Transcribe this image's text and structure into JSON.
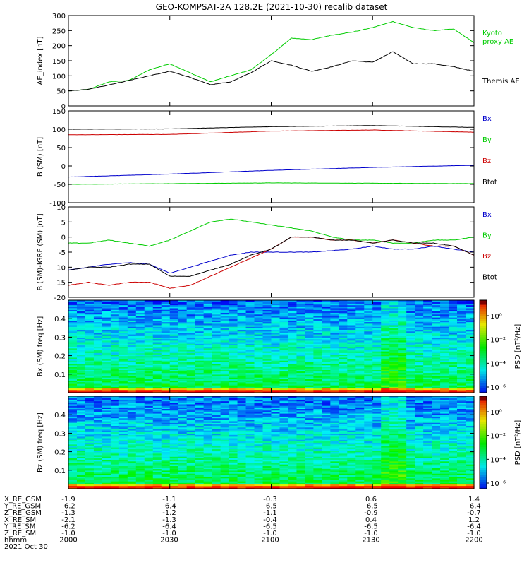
{
  "title": "GEO-KOMPSAT-2A 128.2E (2021-10-30) recalib dataset",
  "colors": {
    "black": "#000000",
    "blue": "#0000cc",
    "red": "#cc0000",
    "green": "#00cc00"
  },
  "x_ticks": [
    "2000",
    "2030",
    "2100",
    "2130",
    "2200"
  ],
  "chart_data": [
    {
      "type": "line",
      "id": "ae",
      "ylabel": "AE_index [nT]",
      "ylim": [
        0,
        300
      ],
      "yticks": [
        0,
        50,
        100,
        150,
        200,
        250,
        300
      ],
      "xlim": [
        0,
        120
      ],
      "series": [
        {
          "name": "Kyoto proxy AE",
          "color": "green",
          "x": [
            0,
            6,
            12,
            18,
            24,
            30,
            36,
            42,
            48,
            54,
            60,
            66,
            72,
            78,
            84,
            90,
            96,
            102,
            108,
            114,
            120
          ],
          "y": [
            50,
            55,
            80,
            85,
            120,
            140,
            110,
            80,
            100,
            120,
            170,
            225,
            220,
            235,
            245,
            260,
            280,
            260,
            250,
            255,
            210
          ]
        },
        {
          "name": "Themis AE",
          "color": "black",
          "x": [
            0,
            6,
            12,
            18,
            24,
            30,
            36,
            42,
            48,
            54,
            60,
            66,
            72,
            78,
            84,
            90,
            96,
            102,
            108,
            114,
            120
          ],
          "y": [
            50,
            55,
            70,
            85,
            100,
            115,
            95,
            70,
            80,
            110,
            150,
            135,
            115,
            130,
            150,
            145,
            180,
            140,
            140,
            130,
            115
          ]
        }
      ]
    },
    {
      "type": "line",
      "id": "bsm",
      "ylabel": "B (SM) [nT]",
      "ylim": [
        -100,
        150
      ],
      "yticks": [
        -100,
        -50,
        0,
        50,
        100,
        150
      ],
      "xlim": [
        0,
        120
      ],
      "series": [
        {
          "name": "Bx",
          "color": "blue",
          "x": [
            0,
            30,
            60,
            90,
            120
          ],
          "y": [
            -30,
            -22,
            -12,
            -4,
            2
          ]
        },
        {
          "name": "By",
          "color": "green",
          "x": [
            0,
            30,
            60,
            90,
            120
          ],
          "y": [
            -50,
            -48,
            -46,
            -47,
            -48
          ]
        },
        {
          "name": "Bz",
          "color": "red",
          "x": [
            0,
            30,
            60,
            90,
            120
          ],
          "y": [
            85,
            86,
            95,
            98,
            92
          ]
        },
        {
          "name": "Btot",
          "color": "black",
          "x": [
            0,
            30,
            60,
            90,
            120
          ],
          "y": [
            100,
            101,
            107,
            110,
            105
          ]
        }
      ]
    },
    {
      "type": "line",
      "id": "dbsm",
      "ylabel": "B (SM)-IGRF (SM) [nT]",
      "ylim": [
        -20,
        10
      ],
      "yticks": [
        -20,
        -15,
        -10,
        -5,
        0,
        5,
        10
      ],
      "xlim": [
        0,
        120
      ],
      "series": [
        {
          "name": "Bx",
          "color": "blue",
          "x": [
            0,
            6,
            12,
            18,
            24,
            30,
            36,
            42,
            48,
            54,
            60,
            66,
            72,
            78,
            84,
            90,
            96,
            102,
            108,
            114,
            120
          ],
          "y": [
            -11,
            -10,
            -9,
            -8.5,
            -9,
            -12,
            -10,
            -8,
            -6,
            -5,
            -5,
            -5,
            -5,
            -4.5,
            -4,
            -3,
            -4,
            -4,
            -3,
            -4,
            -5
          ]
        },
        {
          "name": "By",
          "color": "green",
          "x": [
            0,
            6,
            12,
            18,
            24,
            30,
            36,
            42,
            48,
            54,
            60,
            66,
            72,
            78,
            84,
            90,
            96,
            102,
            108,
            114,
            120
          ],
          "y": [
            -2,
            -2,
            -1,
            -2,
            -3,
            -1,
            2,
            5,
            6,
            5,
            4,
            3,
            2,
            0,
            -1,
            -1,
            -2,
            -2,
            -1,
            -1,
            0
          ]
        },
        {
          "name": "Bz",
          "color": "red",
          "x": [
            0,
            6,
            12,
            18,
            24,
            30,
            36,
            42,
            48,
            54,
            60,
            66,
            72,
            78,
            84,
            90,
            96,
            102,
            108,
            114,
            120
          ],
          "y": [
            -16,
            -15,
            -16,
            -15,
            -15,
            -17,
            -16,
            -13,
            -10,
            -7,
            -4,
            0,
            0,
            -1,
            -1,
            -2,
            -1,
            -2,
            -3,
            -3,
            -6
          ]
        },
        {
          "name": "Btot",
          "color": "black",
          "x": [
            0,
            6,
            12,
            18,
            24,
            30,
            36,
            42,
            48,
            54,
            60,
            66,
            72,
            78,
            84,
            90,
            96,
            102,
            108,
            114,
            120
          ],
          "y": [
            -11,
            -10,
            -10,
            -9,
            -9,
            -13,
            -13,
            -11,
            -9,
            -6,
            -4,
            0,
            0,
            -1,
            -1,
            -2,
            -1,
            -2,
            -2,
            -3,
            -6
          ]
        }
      ]
    },
    {
      "type": "heatmap",
      "id": "bx_psd",
      "ylabel": "Bx (SM) freq [Hz]",
      "ylim": [
        0,
        0.5
      ],
      "yticks": [
        0.1,
        0.2,
        0.3,
        0.4
      ],
      "colorbar_label": "PSD [nT²/Hz]",
      "colorbar_ticks": [
        "10⁰",
        "10⁻²",
        "10⁻⁴",
        "10⁻⁶"
      ]
    },
    {
      "type": "heatmap",
      "id": "bz_psd",
      "ylabel": "Bz (SM) freq [Hz]",
      "ylim": [
        0,
        0.5
      ],
      "yticks": [
        0.1,
        0.2,
        0.3,
        0.4
      ],
      "colorbar_label": "PSD [nT²/Hz]",
      "colorbar_ticks": [
        "10⁰",
        "10⁻²",
        "10⁻⁴",
        "10⁻⁶"
      ]
    }
  ],
  "legend_ae": [
    {
      "text": "Kyoto",
      "color": "green"
    },
    {
      "text": "proxy AE",
      "color": "green"
    },
    {
      "text": "Themis AE",
      "color": "black"
    }
  ],
  "ephemeris": {
    "labels": [
      "X_RE_GSM",
      "Y_RE_GSM",
      "Z_RE_GSM",
      "X_RE_SM",
      "Y_RE_SM",
      "Z_RE_SM",
      "hhmm"
    ],
    "rows": [
      [
        "-1.9",
        "-1.1",
        "-0.3",
        "0.6",
        "1.4"
      ],
      [
        "-6.2",
        "-6.4",
        "-6.5",
        "-6.5",
        "-6.4"
      ],
      [
        "-1.3",
        "-1.2",
        "-1.1",
        "-0.9",
        "-0.7"
      ],
      [
        "-2.1",
        "-1.3",
        "-0.4",
        "0.4",
        "1.2"
      ],
      [
        "-6.2",
        "-6.4",
        "-6.5",
        "-6.5",
        "-6.4"
      ],
      [
        "-1.0",
        "-1.0",
        "-1.0",
        "-1.0",
        "-1.0"
      ],
      [
        "2000",
        "2030",
        "2100",
        "2130",
        "2200"
      ]
    ],
    "date": "2021 Oct 30"
  }
}
